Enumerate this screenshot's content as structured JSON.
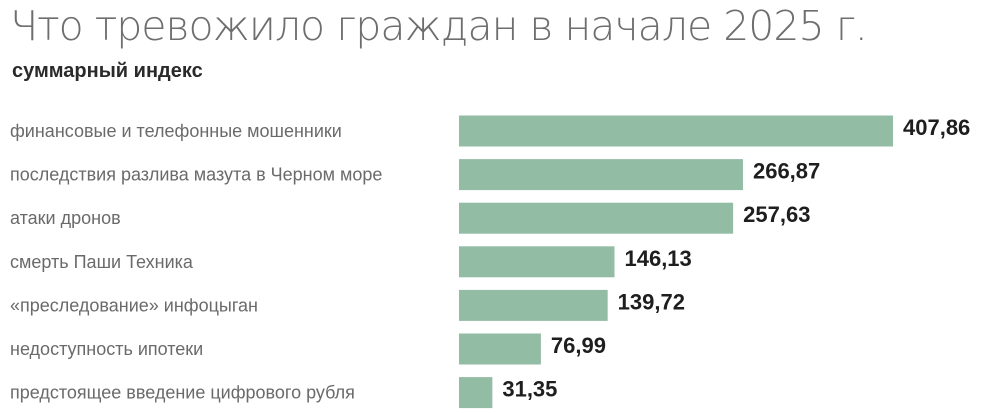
{
  "chart_data": {
    "type": "bar",
    "orientation": "horizontal",
    "title": "Что тревожило граждан в начале 2025 г.",
    "subtitle": "суммарный индекс",
    "categories": [
      "финансовые и телефонные мошенники",
      "последствия разлива мазута в Черном море",
      "атаки дронов",
      "смерть Паши Техника",
      "«преследование» инфоцыган",
      "недоступность ипотеки",
      "предстоящее введение цифрового рубля"
    ],
    "values": [
      407.86,
      266.87,
      257.63,
      146.13,
      139.72,
      76.99,
      31.35
    ],
    "value_labels": [
      "407,86",
      "266,87",
      "257,63",
      "146,13",
      "139,72",
      "76,99",
      "31,35"
    ],
    "xlim": [
      0,
      407.86
    ],
    "grid": false,
    "legend": "none",
    "colors": {
      "bar": "#93bca5",
      "title": "#6e6e6e",
      "subtitle": "#2a2a2a",
      "category_text": "#6a6a6a",
      "value_text": "#1e1e1e"
    }
  }
}
